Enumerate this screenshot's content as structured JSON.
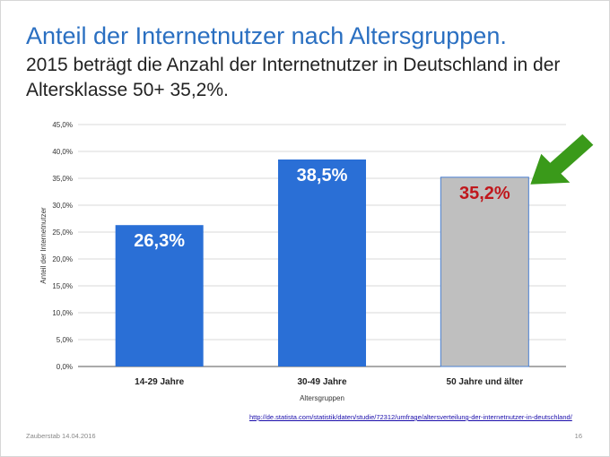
{
  "slide": {
    "title": "Anteil der Internetnutzer nach Altersgruppen.",
    "subtitle": "2015 beträgt die Anzahl der Internetnutzer in Deutschland in der Altersklasse 50+ 35,2%.",
    "source_url": "http://de.statista.com/statistik/daten/studie/72312/umfrage/altersverteilung-der-internetnutzer-in-deutschland/",
    "footer_left": "Zauberstab 14.04.2016",
    "page_number": "16",
    "arrow_icon": "green-arrow-icon"
  },
  "chart_data": {
    "type": "bar",
    "categories": [
      "14-29 Jahre",
      "30-49 Jahre",
      "50 Jahre und älter"
    ],
    "values": [
      26.3,
      38.5,
      35.2
    ],
    "value_labels": [
      "26,3%",
      "38,5%",
      "35,2%"
    ],
    "bar_colors": [
      "#2a6fd6",
      "#2a6fd6",
      "#bfbfbf"
    ],
    "value_label_colors": [
      "#ffffff",
      "#ffffff",
      "#c0171c"
    ],
    "xlabel": "Altersgruppen",
    "ylabel": "Anteil der Internetnutzer",
    "ylim": [
      0,
      45
    ],
    "yticks": [
      0,
      5,
      10,
      15,
      20,
      25,
      30,
      35,
      40,
      45
    ],
    "ytick_labels": [
      "0,0%",
      "5,0%",
      "10,0%",
      "15,0%",
      "20,0%",
      "25,0%",
      "30,0%",
      "35,0%",
      "40,0%",
      "45,0%"
    ],
    "grid": true,
    "accent_color": "#2a6fc1",
    "arrow_color": "#3a9a1a"
  }
}
